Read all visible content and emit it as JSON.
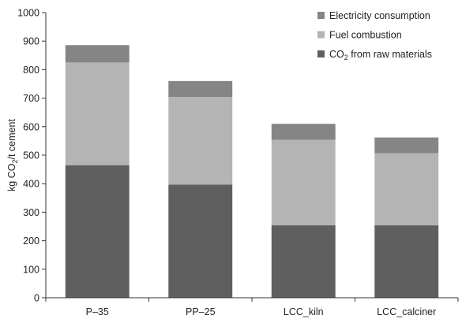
{
  "chart_data": {
    "type": "bar",
    "stacked": true,
    "categories": [
      "P–35",
      "PP–25",
      "LCC_kiln",
      "LCC_calciner"
    ],
    "series": [
      {
        "name": "CO2 from raw materials",
        "name_prefix": "CO",
        "name_sub": "2",
        "name_suffix": " from raw materials",
        "color": "#5f5f5f",
        "values": [
          465,
          397,
          254,
          254
        ]
      },
      {
        "name": "Fuel combustion",
        "color": "#b4b4b4",
        "values": [
          360,
          307,
          300,
          253
        ]
      },
      {
        "name": "Electricity consumption",
        "color": "#858585",
        "values": [
          61,
          56,
          56,
          55
        ]
      }
    ],
    "ylabel": {
      "prefix": "kg CO",
      "sub": "2",
      "suffix": "/t cement"
    },
    "ylim": [
      0,
      1000
    ],
    "yticks": [
      0,
      100,
      200,
      300,
      400,
      500,
      600,
      700,
      800,
      900,
      1000
    ],
    "legend_position": "top-right",
    "grid": false
  }
}
